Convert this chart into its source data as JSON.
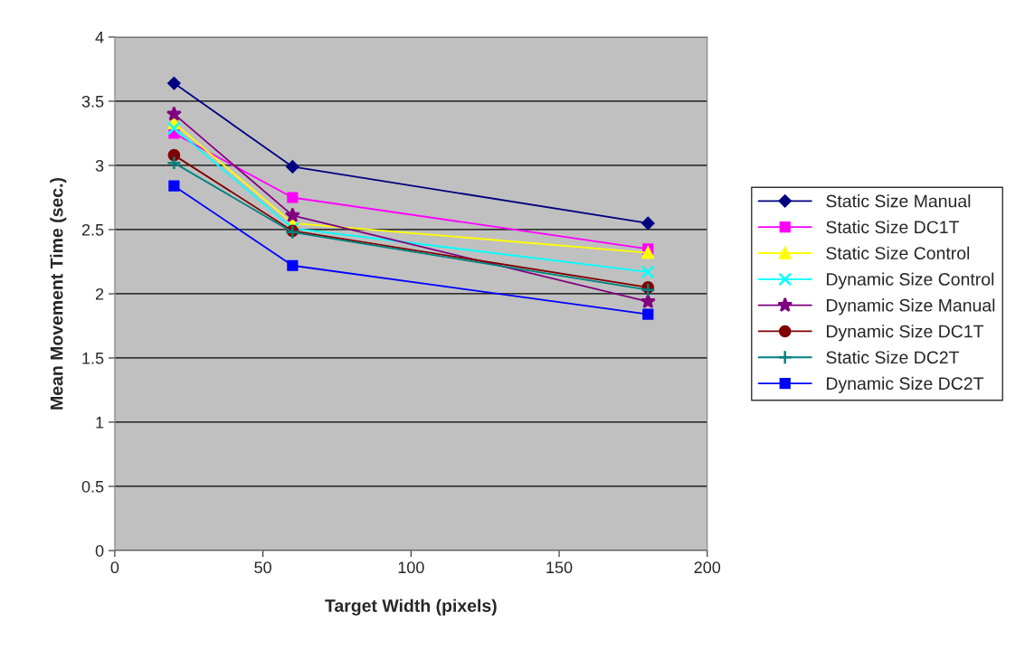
{
  "chart_data": {
    "type": "line",
    "xlabel": "Target Width (pixels)",
    "ylabel": "Mean Movement Time (sec.)",
    "x": [
      20,
      60,
      180
    ],
    "series": [
      {
        "name": "Static Size Manual",
        "color": "#000080",
        "marker": "diamond",
        "values": [
          3.64,
          2.99,
          2.55
        ]
      },
      {
        "name": "Static Size DC1T",
        "color": "#ff00ff",
        "marker": "square",
        "values": [
          3.25,
          2.75,
          2.35
        ]
      },
      {
        "name": "Static Size Control",
        "color": "#ffff00",
        "marker": "triangle",
        "values": [
          3.33,
          2.55,
          2.32
        ]
      },
      {
        "name": "Dynamic Size Control",
        "color": "#00ffff",
        "marker": "cross",
        "values": [
          3.29,
          2.51,
          2.17
        ]
      },
      {
        "name": "Dynamic Size Manual",
        "color": "#800080",
        "marker": "star",
        "values": [
          3.4,
          2.61,
          1.94
        ]
      },
      {
        "name": "Dynamic Size DC1T",
        "color": "#800000",
        "marker": "circle",
        "values": [
          3.08,
          2.49,
          2.05
        ]
      },
      {
        "name": "Static Size DC2T",
        "color": "#008080",
        "marker": "plus",
        "values": [
          3.02,
          2.48,
          2.03
        ]
      },
      {
        "name": "Dynamic Size DC2T",
        "color": "#0000ff",
        "marker": "square",
        "values": [
          2.84,
          2.22,
          1.84
        ]
      }
    ],
    "xlim": [
      0,
      200
    ],
    "xticks": [
      0,
      50,
      100,
      150,
      200
    ],
    "ylim": [
      0,
      4
    ],
    "yticks": [
      0,
      0.5,
      1,
      1.5,
      2,
      2.5,
      3,
      3.5,
      4
    ],
    "grid": "y",
    "legend": "right"
  }
}
